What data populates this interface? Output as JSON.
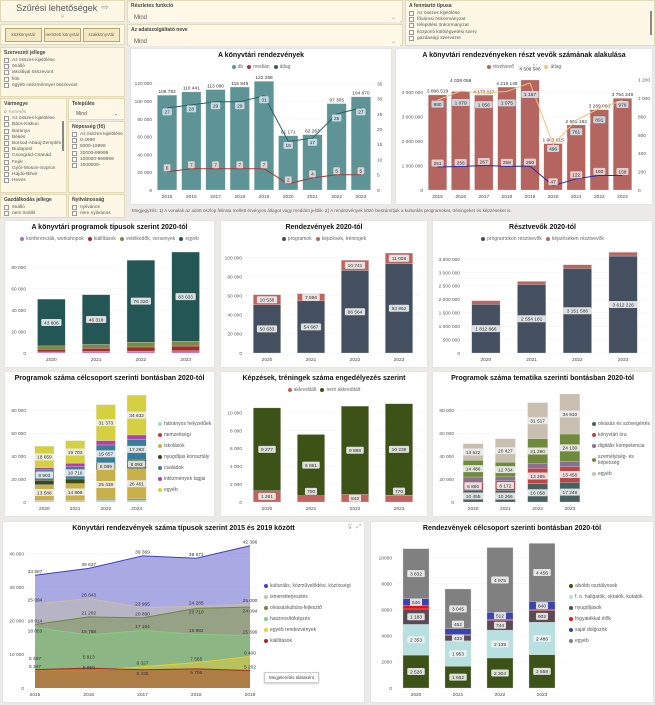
{
  "filters": {
    "title": "Szűrési lehetőségek",
    "arrow_right": "⇨",
    "arrow_down": "⇩",
    "library_buttons": [
      "közkönyvtár",
      "nemzeti könyvtár",
      "szakkönyvtár"
    ],
    "detailed_function": {
      "label": "Részletes funkció",
      "value": "Mind"
    },
    "provider_name": {
      "label": "Az adatszolgáltató neve",
      "value": "Mind"
    },
    "maintainer_type": {
      "label": "A fenntartó típusa",
      "items": [
        "Az összes kijelölése",
        "fővárosi önkormányzat",
        "települési önkormányzat",
        "központi költségvetési szerv",
        "gazdasági szervezet"
      ]
    },
    "org_type": {
      "label": "Szervezeti jellege",
      "items": [
        "Az összes kijelölése",
        "önálló",
        "iskolával összevont",
        "fiók",
        "egyéb intézménnyel összevont"
      ]
    },
    "county": {
      "label": "Vármegye",
      "search_placeholder": "Keresés",
      "items": [
        "Az összes kijelölése",
        "Bács-Kiskun",
        "Baranya",
        "Békés",
        "Borsod-Abaúj-Zemplén",
        "Budapest",
        "Csongrád-Csanád",
        "Fejér",
        "Győr-Moson-Sopron",
        "Hajdú-Bihar",
        "Heves"
      ]
    },
    "settlement": {
      "label": "Település",
      "value": "Mind"
    },
    "population": {
      "label": "Népesség (fő)",
      "items": [
        "Az összes kijelölése",
        "0-4999",
        "5000-19999",
        "20000-99999",
        "100000-999999",
        "1000000-"
      ]
    },
    "management": {
      "label": "Gazdálkodás jellege",
      "items": [
        "önálló",
        "nem önálló"
      ]
    },
    "publicity": {
      "label": "Nyilvánosság",
      "items": [
        "nyilvános",
        "nem nyilvános"
      ]
    }
  },
  "footnote": "Megjegyzés: 1) A vonalak az adott oszlop felirata mellett érvényes átlagot vagy mediánt jelölik. 2) A rendezvények közé beszámítjuk a kulturális programokat, tréningeket és képzéseket is.",
  "chart_data": [
    {
      "type": "bar",
      "title": "A könyvtári rendezvények",
      "legend": "top",
      "categories": [
        "2015",
        "2016",
        "2017",
        "2018",
        "2019",
        "2020",
        "2021",
        "2022",
        "2023"
      ],
      "yticks": [
        "0",
        "20 000",
        "40 000",
        "60 000",
        "80 000",
        "100 000",
        "120 000"
      ],
      "ymax": 125000,
      "y2ticks": [
        "0",
        "5",
        "10",
        "15",
        "20",
        "25",
        "30",
        "35"
      ],
      "y2max": 36.5,
      "series": [
        {
          "name": "db",
          "color": "#5f9497",
          "kind": "bar",
          "values": [
            106782,
            110441,
            113090,
            115949,
            122298,
            61171,
            62283,
            97305,
            104870
          ]
        },
        {
          "name": "medián",
          "color": "#a33a3a",
          "kind": "line",
          "axis": "y2",
          "values": [
            6,
            7,
            7,
            7,
            7,
            2,
            4,
            5,
            5
          ]
        },
        {
          "name": "átlag",
          "color": "#2f5f5f",
          "kind": "line",
          "axis": "y2",
          "values": [
            27,
            28,
            29,
            29,
            31,
            16,
            17,
            25,
            27
          ]
        }
      ]
    },
    {
      "type": "bar",
      "title": "A könyvtári rendezvényeken részt vevők számának alakulása",
      "legend": "top",
      "categories": [
        "2015",
        "2016",
        "2017",
        "2018",
        "2019",
        "2020",
        "2021",
        "2022",
        "2023"
      ],
      "yticks": [
        "0",
        "1 000 000",
        "2 000 000",
        "3 000 000",
        "4 000 000"
      ],
      "ymax": 4550000,
      "y2ticks": [
        "0",
        "200",
        "400",
        "600",
        "800",
        "1 000",
        "1 200"
      ],
      "y2max": 1210,
      "series": [
        {
          "name": "résztvevő",
          "color": "#b5655f",
          "kind": "bar",
          "values": [
            3896519,
            4038058,
            4172117,
            4218148,
            4508586,
            1903615,
            2665182,
            3289060,
            3754249
          ]
        },
        {
          "name": "medián",
          "color": "#2c28a8",
          "kind": "line",
          "axis": "y2",
          "values": [
            251,
            256,
            267,
            258,
            260,
            47,
            122,
            160,
            158
          ]
        },
        {
          "name": "átlag",
          "color": "#f5c07a",
          "kind": "line",
          "axis": "y2",
          "values": [
            980,
            1079,
            1056,
            1075,
            1167,
            496,
            761,
            891,
            976
          ]
        }
      ]
    },
    {
      "type": "stacked-bar",
      "title": "A könyvtári programok típusok szerint 2020-tól",
      "legend": "top",
      "categories": [
        "2020",
        "2021",
        "2022",
        "2023"
      ],
      "yticks": [
        "0",
        "20 000",
        "40 000",
        "60 000",
        "80 000"
      ],
      "ymax": 95000,
      "series": [
        {
          "name": "konferenciák, workshopok",
          "color": "#c06bb5",
          "values": [
            1000,
            1500,
            1800,
            2000
          ]
        },
        {
          "name": "kiállítások",
          "color": "#a52a2a",
          "values": [
            2600,
            3000,
            3800,
            4500
          ]
        },
        {
          "name": "vetélkedők, versenyek",
          "color": "#7a8b45",
          "values": [
            3000,
            3500,
            4500,
            4500
          ]
        },
        {
          "name": "egyéb",
          "color": "#245656",
          "values": [
            43606,
            46318,
            76320,
            83033
          ],
          "label": true
        }
      ]
    },
    {
      "type": "stacked-bar",
      "title": "Rendezvények 2020-tól",
      "legend": "top",
      "categories": [
        "2020",
        "2021",
        "2022",
        "2023"
      ],
      "yticks": [
        "0",
        "20 000",
        "40 000",
        "60 000",
        "80 000",
        "100 000"
      ],
      "ymax": 107000,
      "series": [
        {
          "name": "programok",
          "color": "#444f60",
          "values": [
            50633,
            54687,
            86564,
            93862
          ],
          "label": true
        },
        {
          "name": "képzések, tréningek",
          "color": "#c0635f",
          "values": [
            10538,
            7596,
            10741,
            11008
          ],
          "label": true
        }
      ]
    },
    {
      "type": "stacked-bar",
      "title": "Résztvevők 2020-tól",
      "legend": "top",
      "categories": [
        "2020",
        "2021",
        "2022",
        "2023"
      ],
      "yticks": [
        "0",
        "500 000",
        "1 000 000",
        "1 500 000",
        "2 000 000",
        "2 500 000",
        "3 000 000",
        "3 500 000"
      ],
      "ymax": 3800000,
      "series": [
        {
          "name": "programokon résztvevők",
          "color": "#444f60",
          "values": [
            1812866,
            2554181,
            3151586,
            3612226
          ],
          "label": true
        },
        {
          "name": "képzéseken résztvevők",
          "color": "#c0635f",
          "values": [
            137000,
            113000,
            137000,
            140000
          ]
        }
      ]
    },
    {
      "type": "stacked-bar",
      "title": "Programok száma célcsoport szerinti bontásban 2020-tól",
      "legend": "right",
      "categories": [
        "2020",
        "2021",
        "2022",
        "2023"
      ],
      "yticks": [
        "0",
        "20 000",
        "40 000",
        "60 000",
        "80 000"
      ],
      "ymax": 96000,
      "series": [
        {
          "name": "hátrányos helyzetűek",
          "color": "#a8d8dc",
          "values": [
            1200,
            1000,
            1800,
            1800
          ]
        },
        {
          "name": "nemzetiségi",
          "color": "#e03030",
          "values": [
            300,
            300,
            800,
            900
          ]
        },
        {
          "name": "iskolások",
          "color": "#c8b04a",
          "values": [
            13588,
            14809,
            25439,
            26461
          ],
          "label": true
        },
        {
          "name": "nyugdíjas korosztály",
          "color": "#3b4a12",
          "values": [
            4000,
            4000,
            6089,
            8092
          ],
          "label": true
        },
        {
          "name": "családok",
          "color": "#3a7d99",
          "values": [
            8903,
            10716,
            15657,
            17263
          ],
          "label": true
        },
        {
          "name": "intézmények tagjai",
          "color": "#b040b0",
          "values": [
            2000,
            3000,
            3800,
            4000
          ]
        },
        {
          "name": "egyéb",
          "color": "#d4d040",
          "values": [
            18659,
            19703,
            31373,
            34632
          ],
          "label": true
        }
      ]
    },
    {
      "type": "stacked-bar",
      "title": "Képzések, tréningek száma engedélyezés szerint",
      "legend": "top",
      "categories": [
        "2020",
        "2021",
        "2022",
        "2023"
      ],
      "yticks": [
        "0",
        "2 000",
        "4 000",
        "6 000",
        "8 000",
        "10 000"
      ],
      "ymax": 11200,
      "series": [
        {
          "name": "akkreditált",
          "color": "#c0635f",
          "values": [
            1261,
            700,
            843,
            770
          ],
          "label": true
        },
        {
          "name": "nem akkreditált",
          "color": "#3d5216",
          "values": [
            9277,
            6861,
            9898,
            10238
          ],
          "label": true
        }
      ]
    },
    {
      "type": "stacked-bar",
      "title": "Programok száma tematika szerinti bontásban 2020-tól",
      "legend": "right",
      "categories": [
        "2020",
        "2021",
        "2022",
        "2023"
      ],
      "yticks": [
        "0",
        "20 000",
        "40 000",
        "60 000",
        "80 000"
      ],
      "ymax": 96000,
      "series": [
        {
          "name": "olvasás és szövegértés",
          "color": "#4a6060",
          "values": [
            10455,
            10266,
            16058,
            17249
          ],
          "label": true
        },
        {
          "name": "könyvtári óra",
          "color": "#c04444",
          "values": [
            6880,
            8172,
            13285,
            13456
          ],
          "label": true
        },
        {
          "name": "digitális kompetencia",
          "color": "#8a7090",
          "values": [
            4500,
            3500,
            4500,
            4500
          ]
        },
        {
          "name": "személyiség- és képesség",
          "color": "#6f8a3a",
          "values": [
            14486,
            12734,
            21290,
            24130
          ],
          "label": true
        },
        {
          "name": "egyéb",
          "color": "#c8bfb0",
          "values": [
            14522,
            20427,
            31517,
            34910
          ],
          "label": true
        }
      ]
    },
    {
      "type": "area",
      "title": "Könyvtári rendezvények száma típusok szerint 2015 és 2019 között",
      "legend": "right",
      "categories": [
        "2015",
        "2016",
        "2017",
        "2018",
        "2019"
      ],
      "yticks": [
        "0",
        "10 000",
        "20 000",
        "30 000",
        "40 000"
      ],
      "ymax": 43500,
      "tooltip": "Megjelenítés táblaként",
      "series": [
        {
          "name": "kulturális, közművelődési, közösségi",
          "color": "#4040c0",
          "values": [
            33587,
            35637,
            39369,
            38671,
            42396
          ]
        },
        {
          "name": "ismeretterjesztés",
          "color": "#c8c0a0",
          "values": [
            25094,
            26643,
            23965,
            24285,
            25000
          ]
        },
        {
          "name": "olvasáskultúra-fejlesztő",
          "color": "#6f8a3a",
          "values": [
            18914,
            21202,
            20890,
            23710,
            24094
          ]
        },
        {
          "name": "hasznosítóképzés",
          "color": "#80d080",
          "values": [
            18053,
            15788,
            17164,
            15982,
            15596
          ]
        },
        {
          "name": "egyéb rendezvények",
          "color": "#e8d030",
          "values": [
            5347,
            5050,
            6327,
            7565,
            9400
          ]
        },
        {
          "name": "kiállítások",
          "color": "#a52a2a",
          "values": [
            5487,
            5913,
            5435,
            5706,
            5202
          ]
        }
      ]
    },
    {
      "type": "stacked-bar",
      "title": "Rendezvények célcsoport szerinti bontásban 2020-tól",
      "legend": "right",
      "categories": [
        "2020",
        "2021",
        "2022",
        "2023"
      ],
      "yticks": [
        "0",
        "2000",
        "4000",
        "6000",
        "8000",
        "10000"
      ],
      "ymax": 11200,
      "series": [
        {
          "name": "alsóbb osztályosok",
          "color": "#3d5216",
          "values": [
            2526,
            1662,
            2304,
            2558
          ],
          "label": true
        },
        {
          "name": "f. o. hallgatók, oktatók, kutatók",
          "color": "#b8e0e0",
          "values": [
            2353,
            1953,
            2139,
            2486
          ],
          "label": true
        },
        {
          "name": "nyugdíjasok",
          "color": "#5a4a55",
          "values": [
            1183,
            433,
            744,
            902
          ],
          "label": true
        },
        {
          "name": "fogyatékkal élők",
          "color": "#ee1010",
          "values": [
            250,
            50,
            100,
            50
          ]
        },
        {
          "name": "saját dolgozók",
          "color": "#3a44b0",
          "values": [
            546,
            452,
            512,
            640
          ],
          "label": true
        },
        {
          "name": "egyéb",
          "color": "#808080",
          "values": [
            3832,
            3045,
            4975,
            4456
          ],
          "label": true
        }
      ]
    }
  ]
}
